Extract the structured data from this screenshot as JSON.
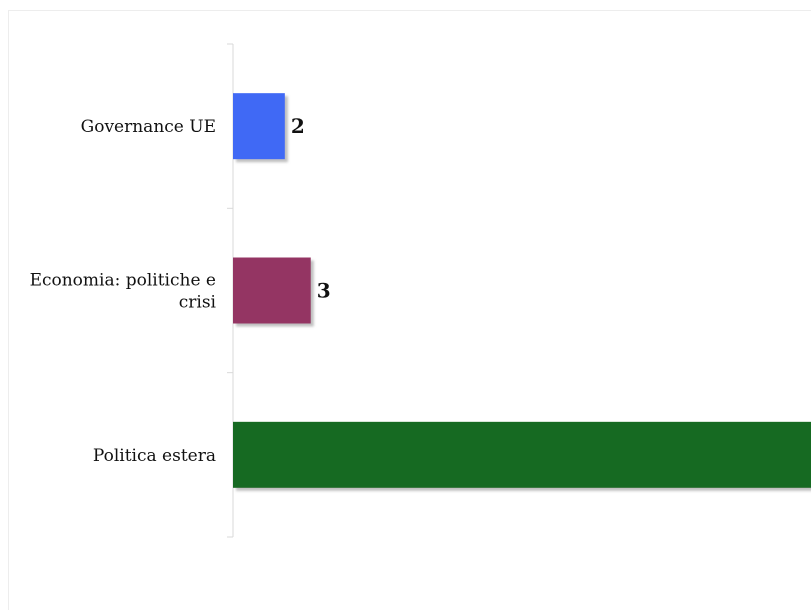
{
  "chart_data": {
    "type": "bar",
    "orientation": "horizontal",
    "categories": [
      "Governance UE",
      "Economia: politiche e crisi",
      "Politica estera"
    ],
    "category_lines": [
      [
        "Governance UE"
      ],
      [
        "Economia: politiche e",
        "crisi"
      ],
      [
        "Politica estera"
      ]
    ],
    "values": [
      2,
      3,
      23
    ],
    "value_labels": [
      "2",
      "3",
      ""
    ],
    "colors": [
      "#4169F5",
      "#943563",
      "#186A22"
    ],
    "title": "",
    "xlabel": "",
    "ylabel": "",
    "xlim": [
      0,
      22.3
    ],
    "grid": false,
    "legend": "none"
  }
}
